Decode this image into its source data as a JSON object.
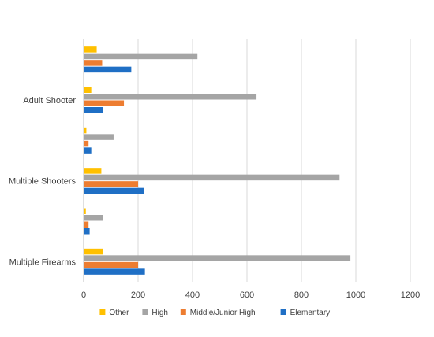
{
  "chart_data": {
    "type": "bar",
    "orientation": "horizontal",
    "category_labels": [
      "Adult Shooter",
      "Multiple Shooters",
      "Multiple Firearms"
    ],
    "rows": [
      {
        "label": "",
        "values": {
          "Other": 48,
          "High": 418,
          "Middle/Junior High": 68,
          "Elementary": 175
        }
      },
      {
        "label": "Adult Shooter",
        "values": {
          "Other": 28,
          "High": 635,
          "Middle/Junior High": 148,
          "Elementary": 72
        }
      },
      {
        "label": "",
        "values": {
          "Other": 10,
          "High": 110,
          "Middle/Junior High": 18,
          "Elementary": 28
        }
      },
      {
        "label": "Multiple Shooters",
        "values": {
          "Other": 65,
          "High": 940,
          "Middle/Junior High": 200,
          "Elementary": 222
        }
      },
      {
        "label": "",
        "values": {
          "Other": 8,
          "High": 72,
          "Middle/Junior High": 18,
          "Elementary": 22
        }
      },
      {
        "label": "Multiple Firearms",
        "values": {
          "Other": 70,
          "High": 980,
          "Middle/Junior High": 200,
          "Elementary": 225
        }
      }
    ],
    "series": [
      {
        "name": "Other",
        "color": "#FFC000"
      },
      {
        "name": "High",
        "color": "#A5A5A5"
      },
      {
        "name": "Middle/Junior High",
        "color": "#ED7D31"
      },
      {
        "name": "Elementary",
        "color": "#1F6FC5"
      }
    ],
    "xlim": [
      0,
      1200
    ],
    "x_ticks": [
      0,
      200,
      400,
      600,
      800,
      1000,
      1200
    ],
    "x_tick_labels": [
      "0",
      "200",
      "400",
      "600",
      "800",
      "1000",
      "1200"
    ],
    "grid": "vertical",
    "legend_position": "bottom",
    "title": "",
    "xlabel": "",
    "ylabel": ""
  }
}
